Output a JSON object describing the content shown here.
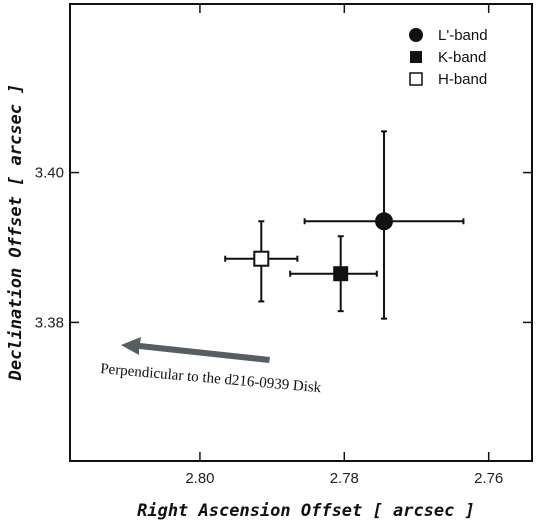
{
  "chart_data": {
    "type": "scatter",
    "xlabel": "Right Ascension Offset [ arcsec ]",
    "ylabel": "Declination Offset [ arcsec ]",
    "xlim": [
      2.818,
      2.754
    ],
    "ylim": [
      3.3615,
      3.4225
    ],
    "x_reversed": true,
    "xticks": [
      2.8,
      2.78,
      2.76
    ],
    "xtick_labels": [
      "2.80",
      "2.78",
      "2.76"
    ],
    "yticks": [
      3.38,
      3.4
    ],
    "ytick_labels": [
      "3.38",
      "3.40"
    ],
    "grid": false,
    "legend_position": "top-right",
    "series": [
      {
        "name": "L'-band",
        "marker": "filled-circle",
        "x": 2.7745,
        "y": 3.3935,
        "xerr": [
          2.7855,
          2.7635
        ],
        "yerr": [
          3.3805,
          3.4055
        ]
      },
      {
        "name": "K-band",
        "marker": "filled-square",
        "x": 2.7805,
        "y": 3.3865,
        "xerr": [
          2.7875,
          2.7755
        ],
        "yerr": [
          3.3815,
          3.3915
        ]
      },
      {
        "name": "H-band",
        "marker": "open-square",
        "x": 2.7915,
        "y": 3.3885,
        "xerr": [
          2.7965,
          2.7865
        ],
        "yerr": [
          3.3828,
          3.3935
        ]
      }
    ],
    "annotation": {
      "text": "Perpendicular to the d216-0939 Disk",
      "arrow_color": "#555e63"
    }
  }
}
